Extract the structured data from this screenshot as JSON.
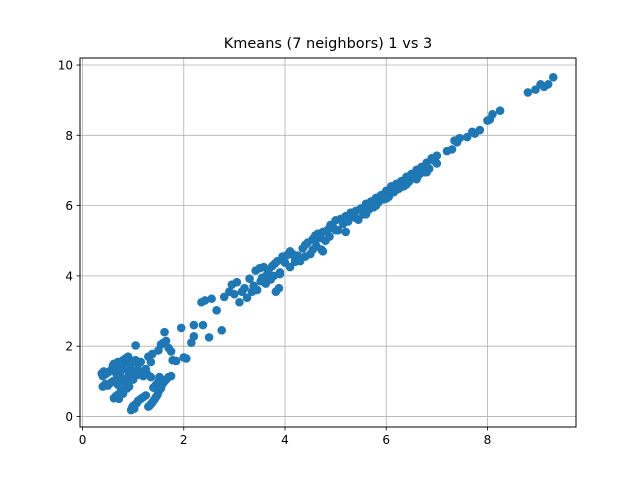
{
  "chart_data": {
    "type": "scatter",
    "title": "Kmeans (7 neighbors) 1 vs 3",
    "xlabel": "",
    "ylabel": "",
    "xlim": [
      -0.05,
      9.75
    ],
    "ylim": [
      -0.3,
      10.2
    ],
    "xticks": [
      0,
      2,
      4,
      6,
      8
    ],
    "yticks": [
      0,
      2,
      4,
      6,
      8,
      10
    ],
    "grid": true,
    "marker_color": "#1f77b4",
    "series": [
      {
        "points": [
          [
            0.38,
            1.22
          ],
          [
            0.42,
            1.28
          ],
          [
            0.4,
            1.15
          ],
          [
            0.45,
            1.2
          ],
          [
            0.5,
            1.25
          ],
          [
            0.55,
            1.3
          ],
          [
            0.6,
            1.45
          ],
          [
            0.62,
            1.5
          ],
          [
            0.65,
            1.38
          ],
          [
            0.7,
            1.55
          ],
          [
            0.72,
            1.42
          ],
          [
            0.75,
            1.32
          ],
          [
            0.78,
            1.5
          ],
          [
            0.8,
            1.6
          ],
          [
            0.85,
            1.65
          ],
          [
            0.88,
            1.55
          ],
          [
            0.9,
            1.7
          ],
          [
            0.92,
            1.62
          ],
          [
            0.95,
            1.48
          ],
          [
            1.0,
            1.58
          ],
          [
            1.05,
            1.6
          ],
          [
            1.1,
            1.5
          ],
          [
            1.15,
            1.55
          ],
          [
            0.6,
            1.3
          ],
          [
            0.68,
            1.18
          ],
          [
            0.75,
            1.28
          ],
          [
            0.8,
            1.35
          ],
          [
            0.9,
            1.3
          ],
          [
            0.98,
            1.25
          ],
          [
            1.05,
            1.3
          ],
          [
            1.1,
            1.32
          ],
          [
            1.18,
            1.25
          ],
          [
            1.25,
            1.35
          ],
          [
            1.3,
            1.7
          ],
          [
            1.35,
            1.55
          ],
          [
            1.38,
            1.78
          ],
          [
            1.05,
            2.02
          ],
          [
            0.4,
            0.85
          ],
          [
            0.45,
            0.92
          ],
          [
            0.5,
            0.88
          ],
          [
            0.55,
            0.95
          ],
          [
            0.6,
            1.0
          ],
          [
            0.65,
            1.02
          ],
          [
            0.7,
            0.9
          ],
          [
            0.75,
            1.05
          ],
          [
            0.8,
            1.08
          ],
          [
            0.85,
            0.95
          ],
          [
            0.9,
            1.12
          ],
          [
            0.95,
            1.2
          ],
          [
            1.0,
            1.05
          ],
          [
            1.08,
            1.18
          ],
          [
            1.15,
            1.22
          ],
          [
            1.2,
            1.15
          ],
          [
            1.28,
            1.2
          ],
          [
            1.35,
            1.12
          ],
          [
            0.62,
            0.52
          ],
          [
            0.66,
            0.58
          ],
          [
            0.7,
            0.62
          ],
          [
            0.75,
            0.7
          ],
          [
            0.8,
            0.65
          ],
          [
            0.82,
            0.75
          ],
          [
            0.88,
            0.8
          ],
          [
            0.92,
            0.85
          ],
          [
            0.72,
            0.5
          ],
          [
            0.96,
            0.18
          ],
          [
            0.98,
            0.25
          ],
          [
            1.0,
            0.3
          ],
          [
            1.02,
            0.22
          ],
          [
            1.05,
            0.35
          ],
          [
            1.08,
            0.4
          ],
          [
            1.1,
            0.45
          ],
          [
            1.15,
            0.5
          ],
          [
            1.2,
            0.55
          ],
          [
            1.25,
            0.6
          ],
          [
            1.3,
            0.28
          ],
          [
            1.32,
            0.3
          ],
          [
            1.35,
            0.35
          ],
          [
            1.38,
            0.4
          ],
          [
            1.42,
            0.48
          ],
          [
            1.45,
            0.55
          ],
          [
            1.48,
            0.62
          ],
          [
            1.5,
            0.7
          ],
          [
            1.55,
            0.8
          ],
          [
            1.58,
            0.92
          ],
          [
            1.62,
            1.0
          ],
          [
            1.65,
            1.05
          ],
          [
            1.7,
            1.12
          ],
          [
            1.75,
            1.15
          ],
          [
            1.4,
            0.82
          ],
          [
            1.45,
            0.9
          ],
          [
            1.5,
            1.0
          ],
          [
            1.52,
            1.12
          ],
          [
            1.5,
            1.88
          ],
          [
            1.55,
            2.05
          ],
          [
            1.6,
            2.1
          ],
          [
            1.62,
            2.4
          ],
          [
            1.65,
            2.15
          ],
          [
            1.7,
            1.95
          ],
          [
            1.75,
            1.85
          ],
          [
            1.78,
            1.6
          ],
          [
            1.85,
            1.58
          ],
          [
            1.95,
            2.52
          ],
          [
            2.05,
            1.65
          ],
          [
            2.0,
            1.68
          ],
          [
            2.15,
            2.1
          ],
          [
            2.2,
            2.28
          ],
          [
            2.2,
            2.6
          ],
          [
            2.35,
            3.25
          ],
          [
            2.38,
            2.6
          ],
          [
            2.42,
            3.3
          ],
          [
            2.5,
            2.25
          ],
          [
            2.55,
            3.35
          ],
          [
            2.65,
            3.02
          ],
          [
            2.75,
            2.45
          ],
          [
            2.8,
            3.4
          ],
          [
            2.9,
            3.55
          ],
          [
            2.95,
            3.75
          ],
          [
            3.0,
            3.48
          ],
          [
            3.05,
            3.82
          ],
          [
            3.1,
            3.25
          ],
          [
            3.15,
            3.55
          ],
          [
            3.2,
            3.65
          ],
          [
            3.25,
            3.38
          ],
          [
            3.3,
            3.92
          ],
          [
            3.35,
            3.55
          ],
          [
            3.38,
            3.72
          ],
          [
            3.42,
            4.15
          ],
          [
            3.45,
            3.6
          ],
          [
            3.5,
            4.22
          ],
          [
            3.52,
            3.85
          ],
          [
            3.55,
            3.95
          ],
          [
            3.58,
            4.25
          ],
          [
            3.62,
            3.78
          ],
          [
            3.65,
            4.05
          ],
          [
            3.68,
            4.18
          ],
          [
            3.72,
            3.9
          ],
          [
            3.75,
            4.28
          ],
          [
            3.78,
            4.0
          ],
          [
            3.8,
            4.35
          ],
          [
            3.82,
            3.55
          ],
          [
            3.85,
            4.42
          ],
          [
            3.88,
            3.65
          ],
          [
            3.9,
            4.1
          ],
          [
            3.95,
            4.55
          ],
          [
            4.0,
            4.38
          ],
          [
            4.05,
            4.6
          ],
          [
            4.1,
            4.7
          ],
          [
            4.15,
            4.62
          ],
          [
            4.2,
            4.5
          ],
          [
            4.25,
            4.58
          ],
          [
            4.3,
            4.42
          ],
          [
            4.35,
            4.78
          ],
          [
            4.4,
            4.88
          ],
          [
            4.45,
            4.95
          ],
          [
            4.5,
            4.62
          ],
          [
            4.55,
            5.05
          ],
          [
            4.6,
            5.15
          ],
          [
            4.62,
            4.85
          ],
          [
            4.65,
            5.2
          ],
          [
            4.7,
            5.08
          ],
          [
            4.72,
            4.75
          ],
          [
            4.75,
            5.25
          ],
          [
            4.8,
            5.0
          ],
          [
            4.85,
            5.32
          ],
          [
            4.88,
            5.12
          ],
          [
            4.9,
            5.45
          ],
          [
            4.95,
            5.38
          ],
          [
            5.0,
            5.58
          ],
          [
            5.05,
            5.3
          ],
          [
            5.1,
            5.62
          ],
          [
            5.15,
            5.48
          ],
          [
            5.2,
            5.7
          ],
          [
            5.25,
            5.55
          ],
          [
            5.3,
            5.8
          ],
          [
            5.35,
            5.68
          ],
          [
            5.4,
            5.85
          ],
          [
            5.45,
            5.6
          ],
          [
            5.5,
            5.92
          ],
          [
            5.55,
            5.75
          ],
          [
            5.6,
            6.05
          ],
          [
            5.65,
            5.88
          ],
          [
            5.7,
            6.12
          ],
          [
            5.75,
            5.95
          ],
          [
            5.8,
            6.22
          ],
          [
            5.85,
            6.1
          ],
          [
            5.9,
            6.3
          ],
          [
            5.95,
            6.18
          ],
          [
            6.0,
            6.42
          ],
          [
            6.05,
            6.25
          ],
          [
            6.1,
            6.55
          ],
          [
            6.15,
            6.38
          ],
          [
            6.2,
            6.62
          ],
          [
            6.25,
            6.48
          ],
          [
            6.3,
            6.7
          ],
          [
            6.35,
            6.55
          ],
          [
            6.4,
            6.82
          ],
          [
            6.45,
            6.68
          ],
          [
            6.5,
            6.9
          ],
          [
            6.55,
            6.78
          ],
          [
            6.6,
            7.02
          ],
          [
            6.65,
            6.88
          ],
          [
            6.7,
            7.1
          ],
          [
            6.75,
            6.95
          ],
          [
            6.8,
            7.22
          ],
          [
            6.85,
            7.05
          ],
          [
            6.9,
            7.35
          ],
          [
            6.95,
            7.28
          ],
          [
            7.0,
            7.42
          ],
          [
            7.3,
            7.6
          ],
          [
            7.35,
            7.85
          ],
          [
            7.4,
            7.8
          ],
          [
            7.45,
            7.92
          ],
          [
            7.6,
            7.95
          ],
          [
            7.7,
            8.1
          ],
          [
            7.75,
            8.05
          ],
          [
            7.85,
            8.15
          ],
          [
            8.0,
            8.42
          ],
          [
            8.05,
            8.45
          ],
          [
            8.1,
            8.6
          ],
          [
            8.25,
            8.7
          ],
          [
            8.8,
            9.22
          ],
          [
            8.95,
            9.3
          ],
          [
            9.05,
            9.45
          ],
          [
            9.12,
            9.38
          ],
          [
            9.2,
            9.45
          ],
          [
            9.3,
            9.65
          ],
          [
            4.6,
            5.0
          ],
          [
            4.75,
            4.7
          ],
          [
            5.0,
            5.3
          ],
          [
            5.2,
            5.25
          ],
          [
            5.4,
            5.65
          ],
          [
            5.6,
            5.75
          ],
          [
            5.8,
            6.0
          ],
          [
            6.0,
            6.2
          ],
          [
            6.2,
            6.45
          ],
          [
            6.4,
            6.6
          ],
          [
            6.6,
            6.75
          ],
          [
            6.8,
            6.95
          ],
          [
            7.0,
            7.2
          ],
          [
            7.2,
            7.55
          ],
          [
            4.2,
            4.4
          ],
          [
            4.4,
            4.55
          ],
          [
            4.55,
            4.75
          ],
          [
            3.7,
            3.9
          ],
          [
            3.9,
            4.05
          ],
          [
            4.1,
            4.25
          ]
        ]
      }
    ]
  }
}
